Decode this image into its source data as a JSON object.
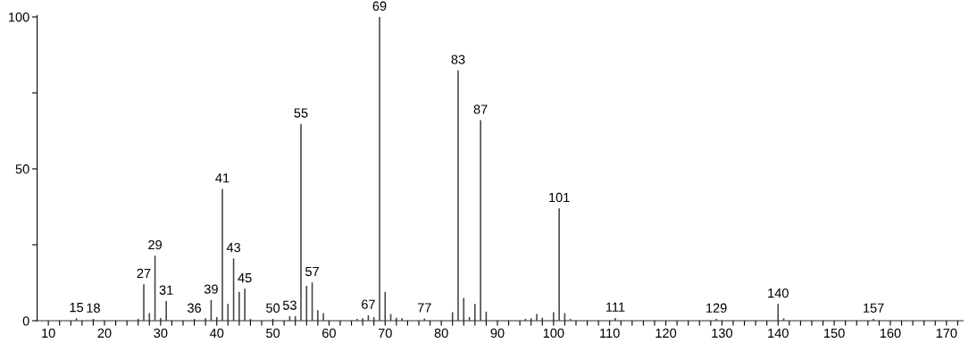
{
  "chart_data": {
    "type": "bar",
    "color": "#444444",
    "x": [
      15,
      18,
      26,
      27,
      28,
      29,
      30,
      31,
      36,
      38,
      39,
      40,
      41,
      42,
      43,
      44,
      45,
      46,
      50,
      53,
      54,
      55,
      56,
      57,
      58,
      59,
      65,
      66,
      67,
      68,
      69,
      70,
      71,
      72,
      73,
      77,
      82,
      83,
      84,
      85,
      86,
      87,
      88,
      95,
      96,
      97,
      98,
      100,
      101,
      102,
      103,
      111,
      129,
      140,
      141,
      157
    ],
    "values": [
      0.8,
      0.6,
      0.6,
      12,
      2.5,
      21.4,
      0.9,
      6.5,
      0.6,
      0.8,
      6.8,
      1.2,
      43.4,
      5.5,
      20.5,
      9.5,
      10.5,
      0.6,
      0.6,
      1.5,
      1.5,
      64.8,
      11.5,
      12.6,
      3.5,
      2.5,
      0.6,
      0.8,
      1.8,
      1.2,
      100,
      9.5,
      2.2,
      1,
      0.8,
      0.7,
      2.8,
      82.4,
      7.5,
      1.2,
      5.5,
      66,
      3,
      0.6,
      0.8,
      2.2,
      1,
      2.8,
      37,
      2.5,
      0.6,
      0.9,
      0.6,
      5.5,
      0.8,
      0.6
    ],
    "xlim": [
      8,
      173
    ],
    "ylim": [
      0,
      100.5
    ],
    "xticks": [
      {
        "value": 10,
        "label": "10"
      },
      {
        "value": 12,
        "label": null
      },
      {
        "value": 14,
        "label": null
      },
      {
        "value": 16,
        "label": null
      },
      {
        "value": 18,
        "label": null
      },
      {
        "value": 20,
        "label": "20"
      },
      {
        "value": 22,
        "label": null
      },
      {
        "value": 24,
        "label": null
      },
      {
        "value": 26,
        "label": null
      },
      {
        "value": 28,
        "label": null
      },
      {
        "value": 30,
        "label": "30"
      },
      {
        "value": 32,
        "label": null
      },
      {
        "value": 34,
        "label": null
      },
      {
        "value": 36,
        "label": null
      },
      {
        "value": 38,
        "label": null
      },
      {
        "value": 40,
        "label": "40"
      },
      {
        "value": 42,
        "label": null
      },
      {
        "value": 44,
        "label": null
      },
      {
        "value": 46,
        "label": null
      },
      {
        "value": 48,
        "label": null
      },
      {
        "value": 50,
        "label": "50"
      },
      {
        "value": 52,
        "label": null
      },
      {
        "value": 54,
        "label": null
      },
      {
        "value": 56,
        "label": null
      },
      {
        "value": 58,
        "label": null
      },
      {
        "value": 60,
        "label": "60"
      },
      {
        "value": 62,
        "label": null
      },
      {
        "value": 64,
        "label": null
      },
      {
        "value": 66,
        "label": null
      },
      {
        "value": 68,
        "label": null
      },
      {
        "value": 70,
        "label": "70"
      },
      {
        "value": 72,
        "label": null
      },
      {
        "value": 74,
        "label": null
      },
      {
        "value": 76,
        "label": null
      },
      {
        "value": 78,
        "label": null
      },
      {
        "value": 80,
        "label": "80"
      },
      {
        "value": 82,
        "label": null
      },
      {
        "value": 84,
        "label": null
      },
      {
        "value": 86,
        "label": null
      },
      {
        "value": 88,
        "label": null
      },
      {
        "value": 90,
        "label": "90"
      },
      {
        "value": 92,
        "label": null
      },
      {
        "value": 94,
        "label": null
      },
      {
        "value": 96,
        "label": null
      },
      {
        "value": 98,
        "label": null
      },
      {
        "value": 100,
        "label": "100"
      },
      {
        "value": 102,
        "label": null
      },
      {
        "value": 104,
        "label": null
      },
      {
        "value": 106,
        "label": null
      },
      {
        "value": 108,
        "label": null
      },
      {
        "value": 110,
        "label": "110"
      },
      {
        "value": 112,
        "label": null
      },
      {
        "value": 114,
        "label": null
      },
      {
        "value": 116,
        "label": null
      },
      {
        "value": 118,
        "label": null
      },
      {
        "value": 120,
        "label": "120"
      },
      {
        "value": 122,
        "label": null
      },
      {
        "value": 124,
        "label": null
      },
      {
        "value": 126,
        "label": null
      },
      {
        "value": 128,
        "label": null
      },
      {
        "value": 130,
        "label": "130"
      },
      {
        "value": 132,
        "label": null
      },
      {
        "value": 134,
        "label": null
      },
      {
        "value": 136,
        "label": null
      },
      {
        "value": 138,
        "label": null
      },
      {
        "value": 140,
        "label": "140"
      },
      {
        "value": 142,
        "label": null
      },
      {
        "value": 144,
        "label": null
      },
      {
        "value": 146,
        "label": null
      },
      {
        "value": 148,
        "label": null
      },
      {
        "value": 150,
        "label": "150"
      },
      {
        "value": 152,
        "label": null
      },
      {
        "value": 154,
        "label": null
      },
      {
        "value": 156,
        "label": null
      },
      {
        "value": 158,
        "label": null
      },
      {
        "value": 160,
        "label": "160"
      },
      {
        "value": 162,
        "label": null
      },
      {
        "value": 164,
        "label": null
      },
      {
        "value": 166,
        "label": null
      },
      {
        "value": 168,
        "label": null
      },
      {
        "value": 170,
        "label": "170"
      },
      {
        "value": 172,
        "label": null
      }
    ],
    "yticks": [
      0,
      {
        "value": 25,
        "label": null
      },
      50,
      {
        "value": 75,
        "label": null
      },
      100
    ],
    "grid": false,
    "legend": false,
    "annotations": [
      {
        "text": "15",
        "x": 15,
        "y": 0.8
      },
      {
        "text": "18",
        "x": 18,
        "y": 0.6
      },
      {
        "text": "27",
        "x": 27,
        "y": 12
      },
      {
        "text": "29",
        "x": 29,
        "y": 21.4
      },
      {
        "text": "31",
        "x": 31,
        "y": 6.5
      },
      {
        "text": "36",
        "x": 36,
        "y": 0.6
      },
      {
        "text": "39",
        "x": 39,
        "y": 6.8
      },
      {
        "text": "41",
        "x": 41,
        "y": 43.4
      },
      {
        "text": "43",
        "x": 43,
        "y": 20.5
      },
      {
        "text": "45",
        "x": 45,
        "y": 10.5
      },
      {
        "text": "50",
        "x": 50,
        "y": 0.6
      },
      {
        "text": "53",
        "x": 53,
        "y": 1.5
      },
      {
        "text": "55",
        "x": 55,
        "y": 64.8
      },
      {
        "text": "57",
        "x": 57,
        "y": 12.6
      },
      {
        "text": "67",
        "x": 67,
        "y": 1.8
      },
      {
        "text": "69",
        "x": 69,
        "y": 100
      },
      {
        "text": "77",
        "x": 77,
        "y": 0.7
      },
      {
        "text": "83",
        "x": 83,
        "y": 82.4
      },
      {
        "text": "87",
        "x": 87,
        "y": 66
      },
      {
        "text": "101",
        "x": 101,
        "y": 37
      },
      {
        "text": "111",
        "x": 111,
        "y": 0.9
      },
      {
        "text": "129",
        "x": 129,
        "y": 0.6
      },
      {
        "text": "140",
        "x": 140,
        "y": 5.5
      },
      {
        "text": "157",
        "x": 157,
        "y": 0.6
      }
    ]
  }
}
